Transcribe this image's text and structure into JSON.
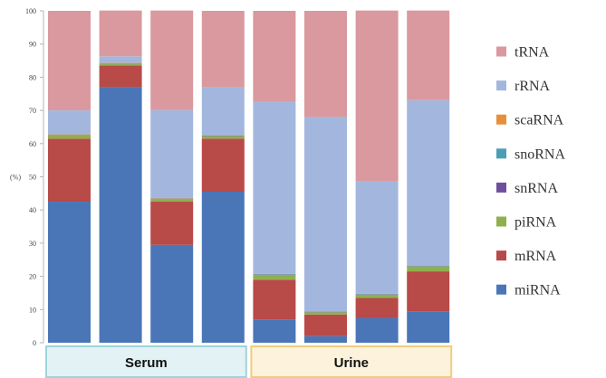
{
  "chart_data": {
    "type": "bar",
    "stacked": true,
    "ylabel": "(%)",
    "ylim": [
      0,
      100
    ],
    "yticks": [
      0,
      10,
      20,
      30,
      40,
      50,
      60,
      70,
      80,
      90,
      100
    ],
    "grid": false,
    "legend_position": "right",
    "legend_order": [
      "tRNA",
      "rRNA",
      "scaRNA",
      "snoRNA",
      "snRNA",
      "piRNA",
      "mRNA",
      "miRNA"
    ],
    "groups": [
      {
        "label": "Serum",
        "bar_count": 4,
        "fill": "#e3f3f5",
        "border": "#9fd3d9"
      },
      {
        "label": "Urine",
        "bar_count": 4,
        "fill": "#fdf3dc",
        "border": "#f0cc80"
      }
    ],
    "series": [
      {
        "name": "miRNA",
        "color": "#4a76b8",
        "values": [
          42.5,
          77,
          29.5,
          45.5,
          7,
          2,
          7.5,
          9.5
        ]
      },
      {
        "name": "mRNA",
        "color": "#b84a48",
        "values": [
          19,
          6.5,
          13,
          16,
          12,
          6.5,
          6,
          12
        ]
      },
      {
        "name": "piRNA",
        "color": "#8fb04c",
        "values": [
          1,
          0.5,
          0.8,
          0.8,
          1.5,
          0.7,
          1,
          1.5
        ]
      },
      {
        "name": "snRNA",
        "color": "#6f4e9e",
        "values": [
          0.1,
          0.1,
          0.1,
          0.1,
          0.1,
          0.1,
          0.1,
          0.1
        ]
      },
      {
        "name": "snoRNA",
        "color": "#4a9fb5",
        "values": [
          0.1,
          0.1,
          0.1,
          0.1,
          0.1,
          0.1,
          0.1,
          0.1
        ]
      },
      {
        "name": "scaRNA",
        "color": "#e6913a",
        "values": [
          0.1,
          0.1,
          0.1,
          0.1,
          0.1,
          0.1,
          0.1,
          0.1
        ]
      },
      {
        "name": "rRNA",
        "color": "#a3b7de",
        "values": [
          7.2,
          2,
          26.5,
          14.4,
          51.8,
          58.5,
          33.8,
          49.8
        ]
      },
      {
        "name": "tRNA",
        "color": "#d9999e",
        "values": [
          30,
          13.8,
          30,
          23,
          27.4,
          32,
          51.5,
          27
        ]
      }
    ]
  }
}
